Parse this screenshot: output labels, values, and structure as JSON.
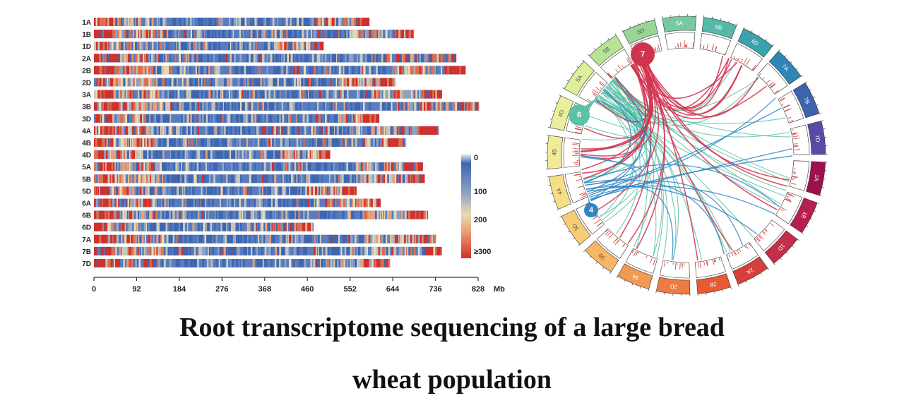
{
  "title": {
    "line1": "Root transcriptome sequencing of a large bread",
    "line2": "wheat population"
  },
  "chart_data": [
    {
      "type": "heatmap",
      "description_of_mark": "chromosome density bars",
      "chromosomes": [
        {
          "name": "1A",
          "length": 594
        },
        {
          "name": "1B",
          "length": 689
        },
        {
          "name": "1D",
          "length": 495
        },
        {
          "name": "2A",
          "length": 781
        },
        {
          "name": "2B",
          "length": 801
        },
        {
          "name": "2D",
          "length": 651
        },
        {
          "name": "3A",
          "length": 750
        },
        {
          "name": "3B",
          "length": 830
        },
        {
          "name": "3D",
          "length": 615
        },
        {
          "name": "4A",
          "length": 744
        },
        {
          "name": "4B",
          "length": 673
        },
        {
          "name": "4D",
          "length": 509
        },
        {
          "name": "5A",
          "length": 709
        },
        {
          "name": "5B",
          "length": 713
        },
        {
          "name": "5D",
          "length": 566
        },
        {
          "name": "6A",
          "length": 618
        },
        {
          "name": "6B",
          "length": 720
        },
        {
          "name": "6D",
          "length": 473
        },
        {
          "name": "7A",
          "length": 737
        },
        {
          "name": "7B",
          "length": 750
        },
        {
          "name": "7D",
          "length": 638
        }
      ],
      "x_ticks": [
        "0",
        "92",
        "184",
        "276",
        "368",
        "460",
        "552",
        "644",
        "736",
        "828"
      ],
      "x_unit": "Mb",
      "xlim": [
        0,
        828
      ],
      "legend": {
        "labels": [
          "0",
          "100",
          "200",
          "≥300"
        ],
        "colors": [
          "#f2f2f2",
          "#3f67b1",
          "#8ea3c4",
          "#e9dcb3",
          "#eba07a",
          "#d2302b"
        ]
      },
      "palette": [
        "#3f67b1",
        "#5a7dbf",
        "#8ea3c4",
        "#c9c9b8",
        "#e9dcb3",
        "#eba07a",
        "#e26f4d",
        "#d2302b"
      ]
    },
    {
      "type": "chord",
      "segments": [
        "1A",
        "1B",
        "1D",
        "2A",
        "2B",
        "2D",
        "3A",
        "3B",
        "3D",
        "4A",
        "4B",
        "4D",
        "5A",
        "5B",
        "5D",
        "6A",
        "6B",
        "6D",
        "7A",
        "7B",
        "7D"
      ],
      "segment_colors": {
        "1A": "#9e1050",
        "1B": "#b5204e",
        "1D": "#c42e48",
        "2A": "#d6403b",
        "2B": "#e85a33",
        "2D": "#ee7b42",
        "3A": "#f29a50",
        "3B": "#f6b664",
        "3D": "#f8cc76",
        "4A": "#f6de86",
        "4B": "#f3ea98",
        "4D": "#ebef9d",
        "5A": "#dcef9b",
        "5B": "#b9e394",
        "5D": "#98d696",
        "6A": "#78c9a0",
        "6B": "#56b8a6",
        "6D": "#3aa2ac",
        "7A": "#2e86b6",
        "7B": "#3d63ad",
        "7D": "#5a4aa5"
      },
      "hubs": [
        {
          "label": "7",
          "color": "#d1324f"
        },
        {
          "label": "6",
          "color": "#5cc1a5"
        },
        {
          "label": "4",
          "color": "#2f86c2"
        }
      ]
    }
  ]
}
